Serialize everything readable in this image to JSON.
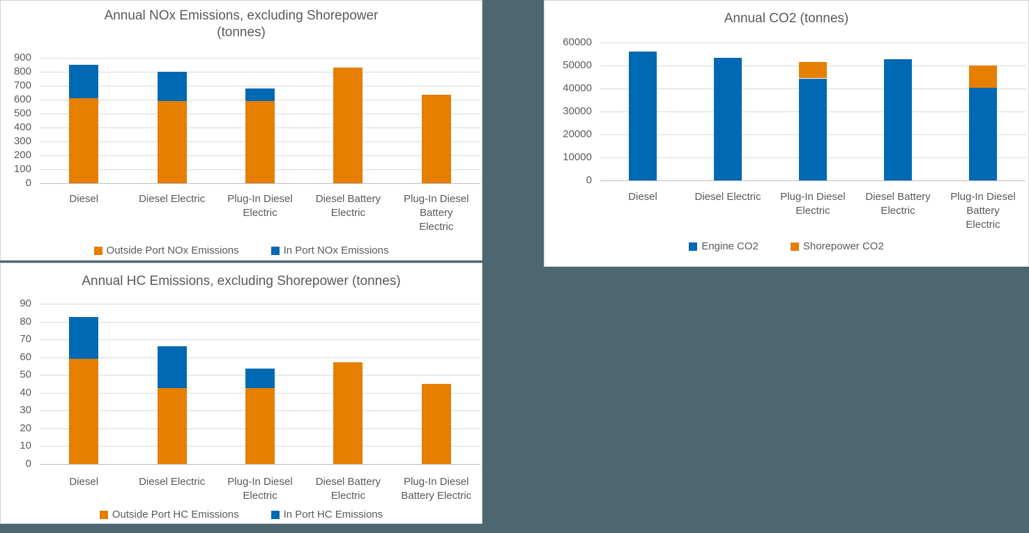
{
  "background_color": "#4D6772",
  "colors": {
    "blue": "#0069B4",
    "orange": "#E67E00",
    "text": "#595959",
    "gridline": "#D9D9D9",
    "axis_line": "#BFBFBF",
    "panel_bg": "#FFFFFF",
    "panel_border": "#D2D2D2"
  },
  "chart_data": [
    {
      "id": "nox",
      "type": "bar",
      "stacked": true,
      "title": "Annual NOx Emissions, excluding Shorepower (tonnes)",
      "title_lines": [
        "Annual NOx Emissions, excluding Shorepower",
        "(tonnes)"
      ],
      "xlabel": "",
      "ylabel": "",
      "ylim": [
        0,
        900
      ],
      "yticks": [
        0,
        100,
        200,
        300,
        400,
        500,
        600,
        700,
        800,
        900
      ],
      "grid": true,
      "legend_position": "bottom",
      "categories": [
        "Diesel",
        "Diesel Electric",
        "Plug-In Diesel Electric",
        "Diesel Battery Electric",
        "Plug-In Diesel Battery Electric"
      ],
      "category_label_lines": [
        [
          "Diesel"
        ],
        [
          "Diesel Electric"
        ],
        [
          "Plug-In Diesel",
          "Electric"
        ],
        [
          "Diesel Battery",
          "Electric"
        ],
        [
          "Plug-In Diesel",
          "Battery",
          "Electric"
        ]
      ],
      "series": [
        {
          "name": "Outside Port NOx Emissions",
          "color_key": "orange",
          "values": [
            612,
            590,
            590,
            828,
            636
          ]
        },
        {
          "name": "In Port NOx Emissions",
          "color_key": "blue",
          "values": [
            238,
            212,
            88,
            0,
            0
          ]
        }
      ]
    },
    {
      "id": "co2",
      "type": "bar",
      "stacked": true,
      "title": "Annual CO2 (tonnes)",
      "title_lines": [
        "Annual CO2 (tonnes)"
      ],
      "xlabel": "",
      "ylabel": "",
      "ylim": [
        0,
        60000
      ],
      "yticks": [
        0,
        10000,
        20000,
        30000,
        40000,
        50000,
        60000
      ],
      "grid": true,
      "legend_position": "bottom",
      "categories": [
        "Diesel",
        "Diesel Electric",
        "Plug-In Diesel Electric",
        "Diesel Battery Electric",
        "Plug-In Diesel Battery Electric"
      ],
      "category_label_lines": [
        [
          "Diesel"
        ],
        [
          "Diesel Electric"
        ],
        [
          "Plug-In Diesel",
          "Electric"
        ],
        [
          "Diesel Battery",
          "Electric"
        ],
        [
          "Plug-In Diesel",
          "Battery",
          "Electric"
        ]
      ],
      "series": [
        {
          "name": "Engine CO2",
          "color_key": "blue",
          "values": [
            56000,
            53300,
            44400,
            52800,
            40300
          ]
        },
        {
          "name": "Shorepower CO2",
          "color_key": "orange",
          "values": [
            0,
            0,
            7100,
            0,
            9700
          ]
        }
      ]
    },
    {
      "id": "hc",
      "type": "bar",
      "stacked": true,
      "title": "Annual HC Emissions, excluding Shorepower (tonnes)",
      "title_lines": [
        "Annual HC Emissions, excluding Shorepower (tonnes)"
      ],
      "xlabel": "",
      "ylabel": "",
      "ylim": [
        0,
        90
      ],
      "yticks": [
        0,
        10,
        20,
        30,
        40,
        50,
        60,
        70,
        80,
        90
      ],
      "grid": true,
      "legend_position": "bottom",
      "categories": [
        "Diesel",
        "Diesel Electric",
        "Plug-In Diesel Electric",
        "Diesel Battery Electric",
        "Plug-In Diesel Battery Electric"
      ],
      "category_label_lines": [
        [
          "Diesel"
        ],
        [
          "Diesel Electric"
        ],
        [
          "Plug-In Diesel",
          "Electric"
        ],
        [
          "Diesel Battery",
          "Electric"
        ],
        [
          "Plug-In Diesel",
          "Battery Electric"
        ]
      ],
      "series": [
        {
          "name": "Outside Port HC Emissions",
          "color_key": "orange",
          "values": [
            59,
            42.5,
            42.5,
            57,
            45
          ]
        },
        {
          "name": "In Port HC Emissions",
          "color_key": "blue",
          "values": [
            23.5,
            23.5,
            11,
            0,
            0
          ]
        }
      ]
    }
  ]
}
